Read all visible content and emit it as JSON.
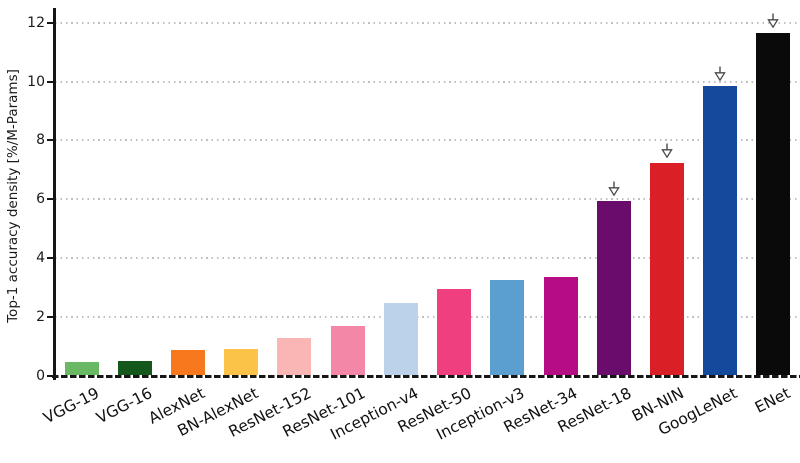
{
  "chart_data": {
    "type": "bar",
    "title": "",
    "xlabel": "",
    "ylabel": "Top-1 accuracy density [%/M-Params]",
    "ylim": [
      0,
      12.5
    ],
    "yticks": [
      0,
      2,
      4,
      6,
      8,
      10,
      12
    ],
    "grid": "horizontal-dotted",
    "legend": "none",
    "categories": [
      "VGG-19",
      "VGG-16",
      "AlexNet",
      "BN-AlexNet",
      "ResNet-152",
      "ResNet-101",
      "Inception-v4",
      "ResNet-50",
      "Inception-v3",
      "ResNet-34",
      "ResNet-18",
      "BN-NIN",
      "GoogLeNet",
      "ENet"
    ],
    "values": [
      0.49,
      0.52,
      0.88,
      0.92,
      1.28,
      1.7,
      2.49,
      2.95,
      3.27,
      3.35,
      5.95,
      7.25,
      9.86,
      11.65
    ],
    "bar_colors": [
      "#69b964",
      "#14581c",
      "#f8781e",
      "#fbc348",
      "#f9b6b4",
      "#f287a8",
      "#bcd1ea",
      "#ef3f7f",
      "#5b9fd0",
      "#b70d84",
      "#6a0c6b",
      "#da2026",
      "#15499c",
      "#0a0a0a"
    ],
    "arrow_marker_categories": [
      "ResNet-18",
      "BN-NIN",
      "GoogLeNet",
      "ENet"
    ],
    "arrow_color": "#4a4a4a",
    "colors": {
      "axis": "#161616",
      "grid": "#bfbfbf",
      "background": "#ffffff"
    }
  }
}
